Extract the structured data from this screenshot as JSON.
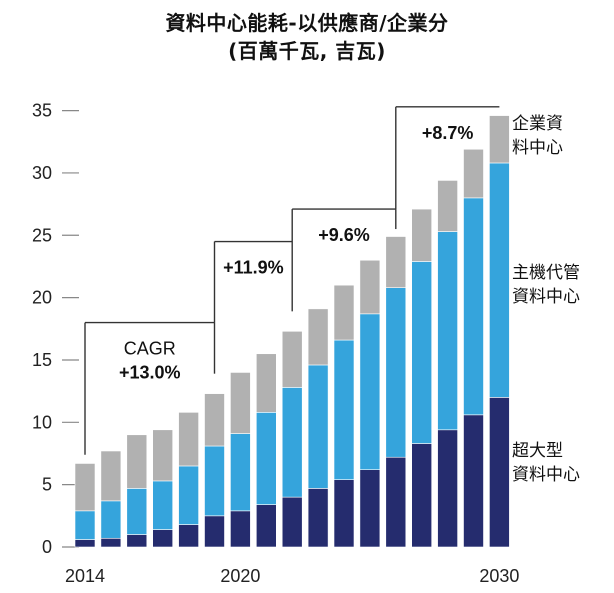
{
  "title": {
    "line1": "資料中心能耗-以供應商/企業分",
    "line2": "(百萬千瓦, 吉瓦)"
  },
  "chart_data": {
    "type": "bar",
    "stacked": true,
    "title": "資料中心能耗-以供應商/企業分 (百萬千瓦, 吉瓦)",
    "xlabel": "",
    "ylabel": "",
    "ylim": [
      0,
      35
    ],
    "yticks": [
      0,
      5,
      10,
      15,
      20,
      25,
      30,
      35
    ],
    "grid": false,
    "categories": [
      "2014",
      "2015",
      "2016",
      "2017",
      "2018",
      "2019",
      "2020",
      "2021",
      "2022",
      "2023",
      "2024",
      "2025",
      "2026",
      "2027",
      "2028",
      "2029",
      "2030"
    ],
    "x_tick_labels": [
      {
        "category": "2014",
        "label": "2014"
      },
      {
        "category": "2020",
        "label": "2020"
      },
      {
        "category": "2030",
        "label": "2030"
      }
    ],
    "series": [
      {
        "name": "超大型資料中心",
        "color": "#252c6e",
        "values": [
          0.6,
          0.7,
          1.0,
          1.4,
          1.8,
          2.5,
          2.9,
          3.4,
          4.0,
          4.7,
          5.4,
          6.2,
          7.2,
          8.3,
          9.4,
          10.6,
          12.0
        ]
      },
      {
        "name": "主機代管資料中心",
        "color": "#35a4dc",
        "values": [
          2.3,
          3.0,
          3.7,
          3.9,
          4.7,
          5.6,
          6.2,
          7.4,
          8.8,
          9.9,
          11.2,
          12.5,
          13.6,
          14.6,
          15.9,
          17.4,
          18.8
        ]
      },
      {
        "name": "企業資料中心",
        "color": "#b1b1b1",
        "values": [
          3.8,
          4.0,
          4.3,
          4.1,
          4.3,
          4.2,
          4.9,
          4.7,
          4.5,
          4.5,
          4.4,
          4.3,
          4.1,
          4.2,
          4.1,
          3.9,
          3.8
        ]
      }
    ],
    "legend": {
      "placement": "right",
      "entries": [
        {
          "series": "企業資料中心",
          "lines": [
            "企業資",
            "料中心"
          ]
        },
        {
          "series": "主機代管資料中心",
          "lines": [
            "主機代管",
            "資料中心"
          ]
        },
        {
          "series": "超大型資料中心",
          "lines": [
            "超大型",
            "資料中心"
          ]
        }
      ]
    },
    "annotations": [
      {
        "from": "2014",
        "to": "2019",
        "label_line1": "CAGR",
        "label_line2": "+13.0%"
      },
      {
        "from": "2019",
        "to": "2022",
        "label_line1": "",
        "label_line2": "+11.9%"
      },
      {
        "from": "2022",
        "to": "2026",
        "label_line1": "",
        "label_line2": "+9.6%"
      },
      {
        "from": "2026",
        "to": "2030",
        "label_line1": "",
        "label_line2": "+8.7%"
      }
    ]
  }
}
